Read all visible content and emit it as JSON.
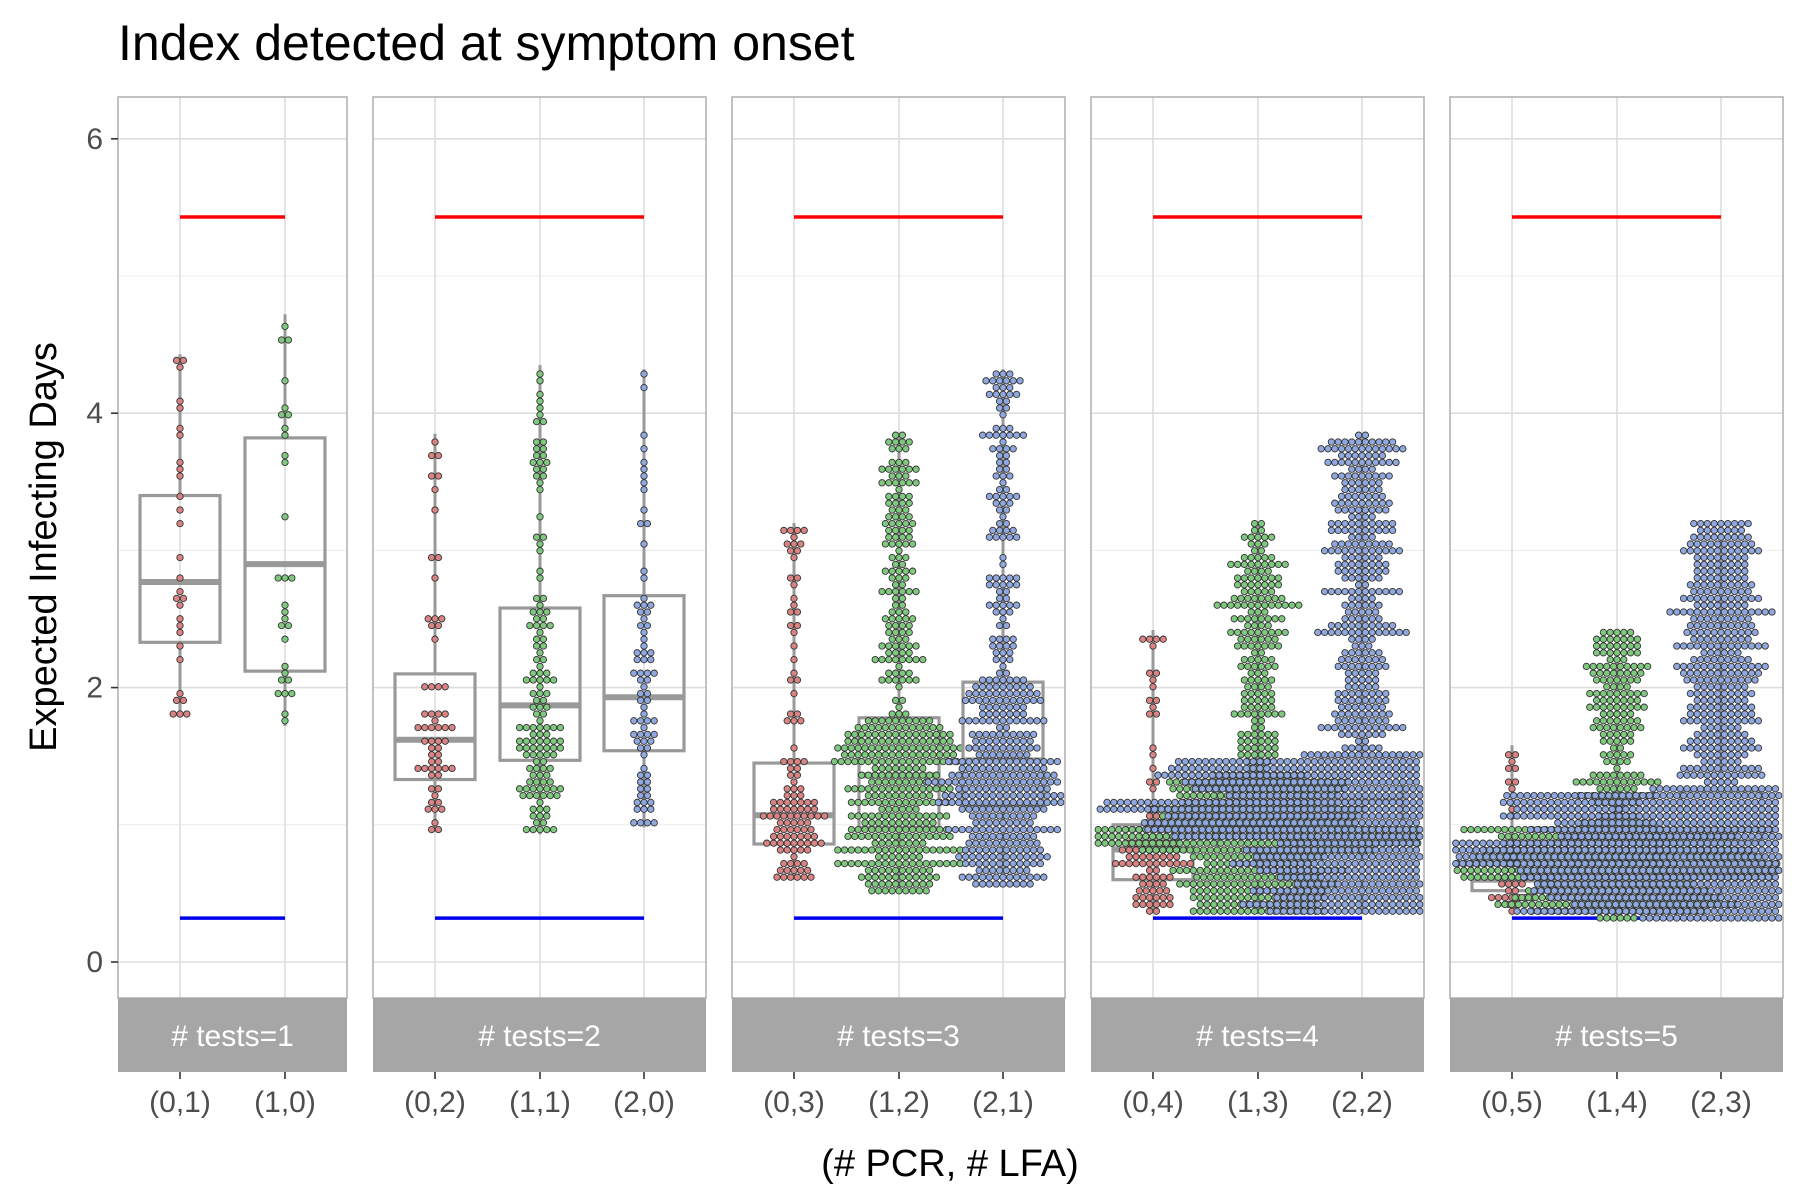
{
  "chart_data": {
    "type": "box-beeswarm",
    "title": "Index detected at symptom onset",
    "xlabel": "(# PCR, # LFA)",
    "ylabel": "Expected Infecting Days",
    "ylim": [
      -0.3,
      6.3
    ],
    "y_ticks": [
      0,
      2,
      4,
      6
    ],
    "grid": true,
    "reference_lines": {
      "upper": 5.43,
      "lower": 0.32,
      "upper_color": "#ff0000",
      "lower_color": "#0000ee"
    },
    "colors": {
      "pcr0": "#d98383",
      "pcr1": "#7fc97f",
      "pcr2": "#8fa8e0",
      "point_stroke": "#333333",
      "box": "#999999",
      "strip": "#a6a6a6",
      "grid": "#dedede"
    },
    "panels": [
      {
        "strip": "# tests=1",
        "groups": [
          {
            "label": "(0,1)",
            "pcr": 0,
            "n": 30,
            "min": 1.8,
            "q1": 2.33,
            "median": 2.77,
            "q3": 3.4,
            "max": 4.43
          },
          {
            "label": "(1,0)",
            "pcr": 1,
            "n": 30,
            "min": 1.72,
            "q1": 2.12,
            "median": 2.9,
            "q3": 3.82,
            "max": 4.72
          }
        ]
      },
      {
        "strip": "# tests=2",
        "groups": [
          {
            "label": "(0,2)",
            "pcr": 0,
            "n": 60,
            "min": 0.97,
            "q1": 1.33,
            "median": 1.62,
            "q3": 2.1,
            "max": 3.85
          },
          {
            "label": "(1,1)",
            "pcr": 1,
            "n": 140,
            "min": 0.93,
            "q1": 1.47,
            "median": 1.87,
            "q3": 2.58,
            "max": 4.35
          },
          {
            "label": "(2,0)",
            "pcr": 2,
            "n": 80,
            "min": 0.98,
            "q1": 1.54,
            "median": 1.93,
            "q3": 2.67,
            "max": 4.32
          }
        ]
      },
      {
        "strip": "# tests=3",
        "groups": [
          {
            "label": "(0,3)",
            "pcr": 0,
            "n": 120,
            "min": 0.6,
            "q1": 0.86,
            "median": 1.07,
            "q3": 1.45,
            "max": 3.2
          },
          {
            "label": "(1,2)",
            "pcr": 1,
            "n": 480,
            "min": 0.52,
            "q1": 0.98,
            "median": 1.36,
            "q3": 1.78,
            "max": 3.85
          },
          {
            "label": "(2,1)",
            "pcr": 2,
            "n": 480,
            "min": 0.55,
            "q1": 1.14,
            "median": 1.47,
            "q3": 2.04,
            "max": 4.32
          }
        ]
      },
      {
        "strip": "# tests=4",
        "groups": [
          {
            "label": "(0,4)",
            "pcr": 0,
            "n": 110,
            "min": 0.38,
            "q1": 0.6,
            "median": 0.82,
            "q3": 1.0,
            "max": 2.42
          },
          {
            "label": "(1,3)",
            "pcr": 1,
            "n": 800,
            "min": 0.35,
            "q1": 0.82,
            "median": 0.98,
            "q3": 1.35,
            "max": 3.2
          },
          {
            "label": "(2,2)",
            "pcr": 2,
            "n": 1400,
            "min": 0.35,
            "q1": 0.9,
            "median": 1.17,
            "q3": 1.5,
            "max": 3.85
          }
        ]
      },
      {
        "strip": "# tests=5",
        "groups": [
          {
            "label": "(0,5)",
            "pcr": 0,
            "n": 40,
            "min": 0.35,
            "q1": 0.52,
            "median": 0.6,
            "q3": 0.82,
            "max": 1.58
          },
          {
            "label": "(1,4)",
            "pcr": 1,
            "n": 700,
            "min": 0.33,
            "q1": 0.62,
            "median": 0.76,
            "q3": 1.0,
            "max": 2.42
          },
          {
            "label": "(2,3)",
            "pcr": 2,
            "n": 1700,
            "min": 0.33,
            "q1": 0.7,
            "median": 0.87,
            "q3": 1.25,
            "max": 3.2
          }
        ]
      }
    ]
  }
}
